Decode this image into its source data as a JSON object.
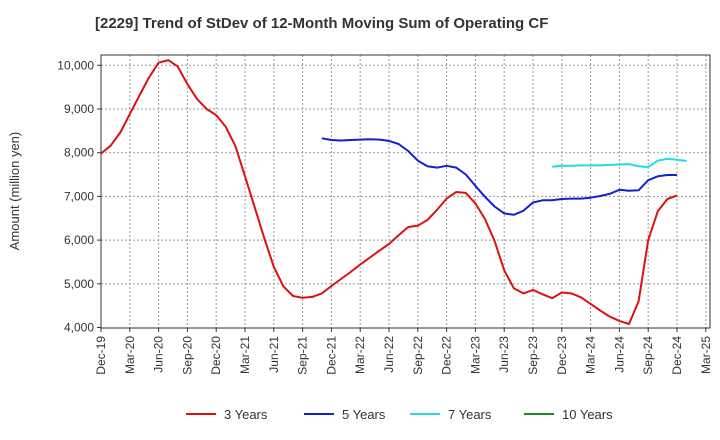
{
  "chart_data": {
    "type": "line",
    "title": "[2229]  Trend of StDev of 12-Month Moving Sum of Operating CF",
    "xlabel": "",
    "ylabel": "Amount (million yen)",
    "ylim": [
      4000,
      10300
    ],
    "yticks": [
      4000,
      5000,
      6000,
      7000,
      8000,
      9000,
      10000
    ],
    "ytick_labels": [
      "4,000",
      "5,000",
      "6,000",
      "7,000",
      "8,000",
      "9,000",
      "10,000"
    ],
    "xtick_labels": [
      "Dec-19",
      "Mar-20",
      "Jun-20",
      "Sep-20",
      "Dec-20",
      "Mar-21",
      "Jun-21",
      "Sep-21",
      "Dec-21",
      "Mar-22",
      "Jun-22",
      "Sep-22",
      "Dec-22",
      "Mar-23",
      "Jun-23",
      "Sep-23",
      "Dec-23",
      "Mar-24",
      "Jun-24",
      "Sep-24",
      "Dec-24",
      "Mar-25"
    ],
    "x_start": "Dec-19",
    "grid": true,
    "legend_position": "bottom",
    "series": [
      {
        "name": "3 Years",
        "color": "#dd1111",
        "start": "Dec-19",
        "values": [
          7980,
          8160,
          8460,
          8880,
          9310,
          9720,
          10060,
          10120,
          9970,
          9570,
          9230,
          9000,
          8860,
          8590,
          8150,
          7460,
          6760,
          6050,
          5390,
          4940,
          4720,
          4680,
          4700,
          4780,
          4950,
          5110,
          5270,
          5440,
          5600,
          5760,
          5910,
          6110,
          6300,
          6330,
          6460,
          6690,
          6950,
          7100,
          7080,
          6840,
          6480,
          5980,
          5310,
          4900,
          4780,
          4860,
          4760,
          4670,
          4800,
          4780,
          4690,
          4540,
          4390,
          4250,
          4150,
          4080,
          4600,
          6000,
          6660,
          6940,
          7020
        ]
      },
      {
        "name": "5 Years",
        "color": "#1122cc",
        "start": "Nov-21",
        "values": [
          8330,
          8290,
          8280,
          8290,
          8300,
          8310,
          8300,
          8270,
          8200,
          8040,
          7820,
          7690,
          7660,
          7700,
          7660,
          7500,
          7240,
          6990,
          6770,
          6610,
          6580,
          6670,
          6860,
          6910,
          6910,
          6940,
          6950,
          6950,
          6970,
          7010,
          7060,
          7150,
          7130,
          7140,
          7370,
          7460,
          7490,
          7490
        ]
      },
      {
        "name": "7 Years",
        "color": "#22dddd",
        "start": "Nov-23",
        "values": [
          7680,
          7700,
          7700,
          7710,
          7710,
          7710,
          7720,
          7730,
          7740,
          7690,
          7670,
          7820,
          7860,
          7840,
          7810
        ]
      },
      {
        "name": "10 Years",
        "color": "#228822",
        "start": "Dec-24",
        "values": []
      }
    ]
  }
}
